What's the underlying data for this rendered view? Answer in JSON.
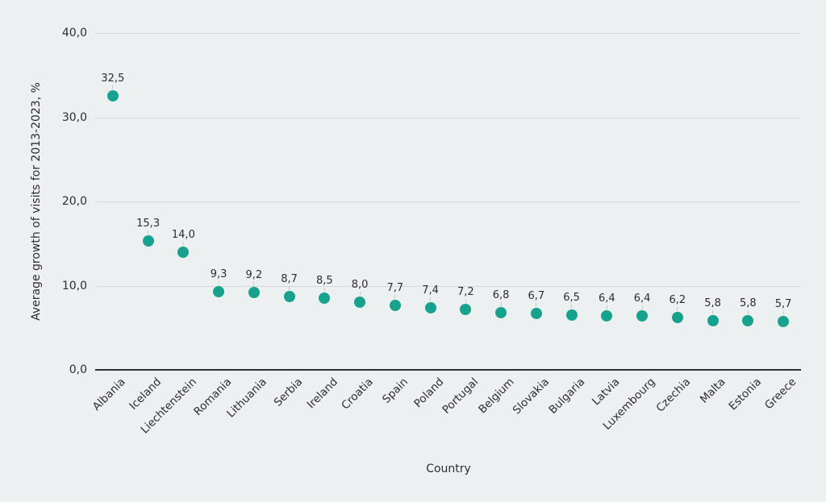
{
  "chart_data": {
    "type": "scatter",
    "title": "",
    "xlabel": "Country",
    "ylabel": "Average growth of visits for 2013-2023, %",
    "ylim": [
      0,
      40
    ],
    "grid": true,
    "legend": "none",
    "decimal_separator": ",",
    "yticks": [
      {
        "value": 0,
        "label": "0,0"
      },
      {
        "value": 10,
        "label": "10,0"
      },
      {
        "value": 20,
        "label": "20,0"
      },
      {
        "value": 30,
        "label": "30,0"
      },
      {
        "value": 40,
        "label": "40,0"
      }
    ],
    "categories": [
      "Albania",
      "Iceland",
      "Liechtenstein",
      "Romania",
      "Lithuania",
      "Serbia",
      "Ireland",
      "Croatia",
      "Spain",
      "Poland",
      "Portugal",
      "Belgium",
      "Slovakia",
      "Bulgaria",
      "Latvia",
      "Luxembourg",
      "Czechia",
      "Malta",
      "Estonia",
      "Greece"
    ],
    "values": [
      32.5,
      15.3,
      14.0,
      9.3,
      9.2,
      8.7,
      8.5,
      8.0,
      7.7,
      7.4,
      7.2,
      6.8,
      6.7,
      6.5,
      6.4,
      6.4,
      6.2,
      5.8,
      5.8,
      5.7
    ],
    "value_labels": [
      "32,5",
      "15,3",
      "14,0",
      "9,3",
      "9,2",
      "8,7",
      "8,5",
      "8,0",
      "7,7",
      "7,4",
      "7,2",
      "6,8",
      "6,7",
      "6,5",
      "6,4",
      "6,4",
      "6,2",
      "5,8",
      "5,8",
      "5,7"
    ],
    "colors": {
      "marker": "#17a28e",
      "background": "#edf0f1",
      "gridline": "#d5d9da",
      "axis_line": "#2e2e2e",
      "text": "#2d2d2d"
    }
  }
}
